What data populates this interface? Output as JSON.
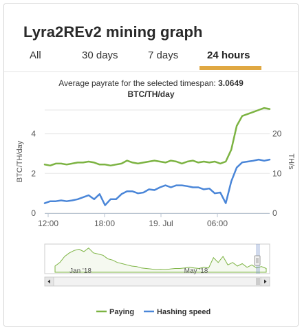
{
  "card": {
    "title": "Lyra2REv2 mining graph",
    "tabs": [
      {
        "label": "All",
        "active": false
      },
      {
        "label": "30 days",
        "active": false
      },
      {
        "label": "7 days",
        "active": false
      },
      {
        "label": "24 hours",
        "active": true
      }
    ],
    "accent_color": "#e0a842",
    "subtitle_prefix": "Average payrate for the selected timespan: ",
    "subtitle_value": "3.0649",
    "subtitle_unit": "BTC/TH/day"
  },
  "chart_data": [
    {
      "type": "line",
      "xlabel": "",
      "x_ticks": [
        "12:00",
        "18:00",
        "19. Jul",
        "06:00"
      ],
      "y_left": {
        "label": "BTC/TH/day",
        "ticks": [
          0,
          2,
          4
        ],
        "ylim": [
          0,
          5.2
        ]
      },
      "y_right": {
        "label": "TH/s",
        "ticks": [
          0,
          10,
          20
        ],
        "ylim": [
          0,
          26
        ]
      },
      "grid": true,
      "legend": "bottom-center",
      "series": [
        {
          "name": "Paying",
          "axis": "left",
          "color": "#7cb342",
          "values": [
            2.45,
            2.4,
            2.5,
            2.5,
            2.45,
            2.5,
            2.55,
            2.55,
            2.6,
            2.55,
            2.45,
            2.45,
            2.4,
            2.45,
            2.5,
            2.65,
            2.55,
            2.5,
            2.55,
            2.6,
            2.65,
            2.6,
            2.55,
            2.65,
            2.6,
            2.5,
            2.6,
            2.65,
            2.55,
            2.6,
            2.55,
            2.6,
            2.5,
            2.6,
            3.2,
            4.4,
            4.9,
            5.0,
            5.1,
            5.2,
            5.3,
            5.25
          ]
        },
        {
          "name": "Hashing speed",
          "axis": "right",
          "color": "#4a86d8",
          "values": [
            2.5,
            3.0,
            3.0,
            3.2,
            3.0,
            3.2,
            3.5,
            4.0,
            4.5,
            3.5,
            4.8,
            2.0,
            3.5,
            3.5,
            4.8,
            5.5,
            5.5,
            5.0,
            5.2,
            6.0,
            5.8,
            6.5,
            7.0,
            6.5,
            7.0,
            7.0,
            6.8,
            6.5,
            6.5,
            6.0,
            6.2,
            5.0,
            5.2,
            2.5,
            8.0,
            11.5,
            12.8,
            13.0,
            13.2,
            13.5,
            13.2,
            13.5
          ]
        }
      ]
    },
    {
      "type": "area",
      "role": "navigator",
      "x_ticks": [
        "Jan '18",
        "May '18"
      ],
      "series": [
        {
          "color": "#7cb342",
          "values": [
            0.2,
            0.35,
            0.6,
            0.75,
            0.85,
            0.9,
            0.8,
            0.95,
            0.75,
            0.7,
            0.65,
            0.5,
            0.45,
            0.35,
            0.3,
            0.25,
            0.2,
            0.18,
            0.12,
            0.1,
            0.08,
            0.05,
            0.06,
            0.05,
            0.08,
            0.1,
            0.1,
            0.12,
            0.15,
            0.12,
            0.1,
            0.15,
            0.12,
            0.55,
            0.35,
            0.6,
            0.25,
            0.35,
            0.2,
            0.3,
            0.15,
            0.25,
            0.12,
            0.18,
            0.1
          ]
        }
      ]
    }
  ]
}
